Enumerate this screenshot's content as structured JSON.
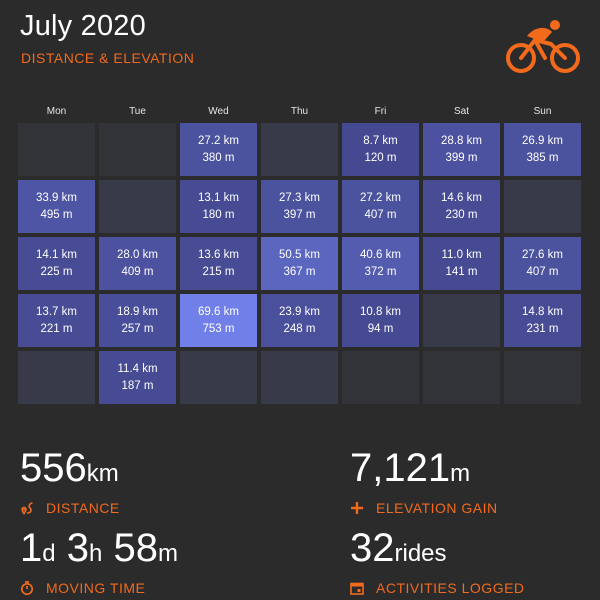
{
  "header": {
    "title": "July 2020",
    "subtitle": "DISTANCE & ELEVATION",
    "icon": "cyclist-icon",
    "accent_color": "#f26a1b"
  },
  "calendar": {
    "day_names": [
      "Mon",
      "Tue",
      "Wed",
      "Thu",
      "Fri",
      "Sat",
      "Sun"
    ],
    "weeks": [
      [
        {
          "dist": "",
          "elev": "",
          "state": "empty"
        },
        {
          "dist": "",
          "elev": "",
          "state": "empty"
        },
        {
          "dist": "27.2 km",
          "elev": "380 m",
          "level": 0.2
        },
        {
          "dist": "",
          "elev": "",
          "state": "blank"
        },
        {
          "dist": "8.7 km",
          "elev": "120 m",
          "level": 0.06
        },
        {
          "dist": "28.8 km",
          "elev": "399 m",
          "level": 0.21
        },
        {
          "dist": "26.9 km",
          "elev": "385 m",
          "level": 0.2
        }
      ],
      [
        {
          "dist": "33.9 km",
          "elev": "495 m",
          "level": 0.26
        },
        {
          "dist": "",
          "elev": "",
          "state": "blank"
        },
        {
          "dist": "13.1 km",
          "elev": "180 m",
          "level": 0.09
        },
        {
          "dist": "27.3 km",
          "elev": "397 m",
          "level": 0.2
        },
        {
          "dist": "27.2 km",
          "elev": "407 m",
          "level": 0.2
        },
        {
          "dist": "14.6 km",
          "elev": "230 m",
          "level": 0.1
        },
        {
          "dist": "",
          "elev": "",
          "state": "blank"
        }
      ],
      [
        {
          "dist": "14.1 km",
          "elev": "225 m",
          "level": 0.1
        },
        {
          "dist": "28.0 km",
          "elev": "409 m",
          "level": 0.21
        },
        {
          "dist": "13.6 km",
          "elev": "215 m",
          "level": 0.1
        },
        {
          "dist": "50.5 km",
          "elev": "367 m",
          "level": 0.55
        },
        {
          "dist": "40.6 km",
          "elev": "372 m",
          "level": 0.38
        },
        {
          "dist": "11.0 km",
          "elev": "141 m",
          "level": 0.07
        },
        {
          "dist": "27.6 km",
          "elev": "407 m",
          "level": 0.2
        }
      ],
      [
        {
          "dist": "13.7 km",
          "elev": "221 m",
          "level": 0.1
        },
        {
          "dist": "18.9 km",
          "elev": "257 m",
          "level": 0.14
        },
        {
          "dist": "69.6 km",
          "elev": "753 m",
          "level": 1.0
        },
        {
          "dist": "23.9 km",
          "elev": "248 m",
          "level": 0.17
        },
        {
          "dist": "10.8 km",
          "elev": "94 m",
          "level": 0.07
        },
        {
          "dist": "",
          "elev": "",
          "state": "blank"
        },
        {
          "dist": "14.8 km",
          "elev": "231 m",
          "level": 0.1
        }
      ],
      [
        {
          "dist": "",
          "elev": "",
          "state": "blank"
        },
        {
          "dist": "11.4 km",
          "elev": "187 m",
          "level": 0.08
        },
        {
          "dist": "",
          "elev": "",
          "state": "blank"
        },
        {
          "dist": "",
          "elev": "",
          "state": "blank"
        },
        {
          "dist": "",
          "elev": "",
          "state": "empty"
        },
        {
          "dist": "",
          "elev": "",
          "state": "empty"
        },
        {
          "dist": "",
          "elev": "",
          "state": "empty"
        }
      ]
    ]
  },
  "stats": {
    "distance": {
      "value": "556",
      "unit": "km",
      "label": "DISTANCE",
      "icon": "route-pin-icon"
    },
    "elevation": {
      "value": "7,121",
      "unit": "m",
      "label": "ELEVATION GAIN",
      "icon": "plus-icon"
    },
    "moving_time": {
      "d_value": "1",
      "d_unit": "d",
      "h_value": "3",
      "h_unit": "h",
      "m_value": "58",
      "m_unit": "m",
      "label": "MOVING TIME",
      "icon": "stopwatch-icon"
    },
    "activities": {
      "value": "32",
      "unit": "rides",
      "label": "ACTIVITIES LOGGED",
      "icon": "calendar-icon"
    }
  }
}
